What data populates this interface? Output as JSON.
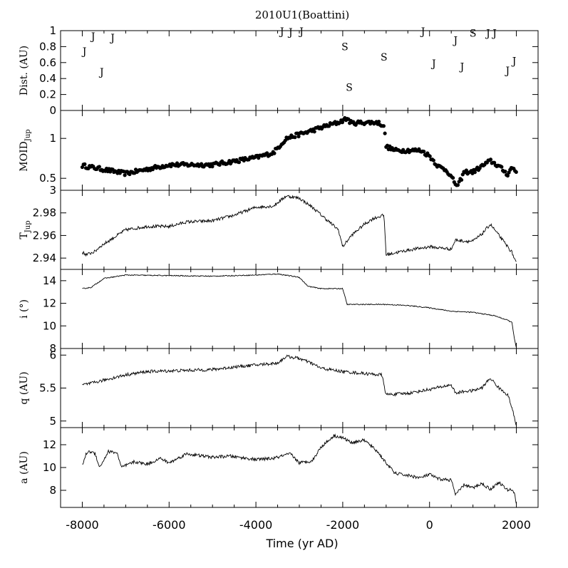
{
  "chart_data": {
    "title": "2010U1(Boattini)",
    "xlabel": "Time (yr AD)",
    "x_ticks": [
      -8000,
      -6000,
      -4000,
      -2000,
      0,
      2000
    ],
    "xlim": [
      -8500,
      2500
    ],
    "panels": [
      {
        "id": "dist",
        "type": "scatter",
        "ylabel": "Dist. (AU)",
        "ylim": [
          0,
          1
        ],
        "y_ticks": [
          0,
          0.2,
          0.4,
          0.6,
          0.8,
          1
        ],
        "encounters": [
          {
            "x": -7950,
            "y": 0.74,
            "label": "J"
          },
          {
            "x": -7750,
            "y": 0.93,
            "label": "J"
          },
          {
            "x": -7550,
            "y": 0.48,
            "label": "J"
          },
          {
            "x": -7300,
            "y": 0.91,
            "label": "J"
          },
          {
            "x": -3400,
            "y": 0.99,
            "label": "J"
          },
          {
            "x": -3200,
            "y": 0.98,
            "label": "J"
          },
          {
            "x": -2950,
            "y": 0.99,
            "label": "J"
          },
          {
            "x": -1950,
            "y": 0.8,
            "label": "S"
          },
          {
            "x": -1850,
            "y": 0.29,
            "label": "S"
          },
          {
            "x": -1050,
            "y": 0.67,
            "label": "S"
          },
          {
            "x": -150,
            "y": 0.99,
            "label": "J"
          },
          {
            "x": 100,
            "y": 0.59,
            "label": "J"
          },
          {
            "x": 600,
            "y": 0.88,
            "label": "J"
          },
          {
            "x": 750,
            "y": 0.55,
            "label": "J"
          },
          {
            "x": 1000,
            "y": 0.97,
            "label": "S"
          },
          {
            "x": 1350,
            "y": 0.97,
            "label": "J"
          },
          {
            "x": 1500,
            "y": 0.97,
            "label": "J"
          },
          {
            "x": 1800,
            "y": 0.5,
            "label": "J"
          },
          {
            "x": 1950,
            "y": 0.62,
            "label": "J"
          }
        ]
      },
      {
        "id": "moid",
        "type": "scatter",
        "ylabel": "MOID",
        "ylabel_sub": "Jup",
        "ylim": [
          0.35,
          1.35
        ],
        "y_ticks": [
          0.5,
          1
        ],
        "x": [
          -8000,
          -7000,
          -6000,
          -5000,
          -4000,
          -3600,
          -3300,
          -3000,
          -2700,
          -2300,
          -2100,
          -1900,
          -1800,
          -1500,
          -1200,
          -1050,
          -1000,
          -800,
          -500,
          -200,
          0,
          200,
          400,
          600,
          650,
          800,
          1000,
          1200,
          1400,
          1600,
          1800,
          1900,
          2000
        ],
        "y": [
          0.66,
          0.56,
          0.67,
          0.67,
          0.76,
          0.82,
          1.0,
          1.05,
          1.1,
          1.17,
          1.2,
          1.25,
          1.19,
          1.2,
          1.2,
          1.16,
          0.9,
          0.85,
          0.85,
          0.85,
          0.78,
          0.65,
          0.6,
          0.43,
          0.4,
          0.58,
          0.58,
          0.65,
          0.72,
          0.65,
          0.55,
          0.64,
          0.58
        ]
      },
      {
        "id": "tjup",
        "type": "line",
        "ylabel": "T",
        "ylabel_sub": "Jup",
        "ylim": [
          2.93,
          3.0
        ],
        "y_ticks": [
          2.94,
          2.96,
          2.98,
          3
        ],
        "x": [
          -8000,
          -7900,
          -7700,
          -7600,
          -7000,
          -6500,
          -6000,
          -5600,
          -5000,
          -4500,
          -4000,
          -3600,
          -3300,
          -3000,
          -2700,
          -2400,
          -2100,
          -2000,
          -1800,
          -1500,
          -1300,
          -1050,
          -1000,
          -500,
          0,
          500,
          600,
          800,
          1000,
          1200,
          1400,
          1600,
          1800,
          1900,
          2000
        ],
        "y": [
          2.945,
          2.943,
          2.946,
          2.95,
          2.965,
          2.968,
          2.968,
          2.972,
          2.973,
          2.978,
          2.985,
          2.986,
          2.995,
          2.993,
          2.985,
          2.975,
          2.965,
          2.95,
          2.96,
          2.97,
          2.975,
          2.978,
          2.943,
          2.947,
          2.95,
          2.948,
          2.956,
          2.955,
          2.955,
          2.961,
          2.97,
          2.96,
          2.95,
          2.945,
          2.935
        ]
      },
      {
        "id": "i",
        "type": "line",
        "ylabel": "i (°)",
        "ylim": [
          8,
          15
        ],
        "y_ticks": [
          8,
          10,
          12,
          14
        ],
        "x": [
          -8000,
          -7800,
          -7500,
          -7000,
          -5000,
          -4000,
          -3500,
          -3000,
          -2800,
          -2500,
          -2000,
          -1900,
          -1000,
          -500,
          0,
          500,
          1000,
          1500,
          1800,
          1900,
          1950,
          2000
        ],
        "y": [
          13.3,
          13.4,
          14.2,
          14.5,
          14.4,
          14.5,
          14.6,
          14.3,
          13.5,
          13.3,
          13.3,
          11.9,
          11.9,
          11.8,
          11.6,
          11.3,
          11.2,
          10.9,
          10.5,
          10.3,
          9.0,
          8.0
        ]
      },
      {
        "id": "q",
        "type": "line",
        "ylabel": "q (AU)",
        "ylim": [
          4.9,
          6.1
        ],
        "y_ticks": [
          5,
          5.5,
          6
        ],
        "x": [
          -8000,
          -7800,
          -7500,
          -7000,
          -6500,
          -6000,
          -5000,
          -4500,
          -4000,
          -3500,
          -3300,
          -3000,
          -2700,
          -2500,
          -2000,
          -1500,
          -1100,
          -1000,
          -500,
          0,
          500,
          600,
          800,
          1000,
          1200,
          1400,
          1600,
          1800,
          1900,
          2000
        ],
        "y": [
          5.55,
          5.57,
          5.62,
          5.7,
          5.75,
          5.76,
          5.78,
          5.82,
          5.85,
          5.88,
          5.98,
          5.95,
          5.87,
          5.8,
          5.75,
          5.72,
          5.7,
          5.4,
          5.42,
          5.48,
          5.55,
          5.42,
          5.45,
          5.46,
          5.5,
          5.65,
          5.5,
          5.4,
          5.2,
          4.92
        ]
      },
      {
        "id": "a",
        "type": "line",
        "ylabel": "a (AU)",
        "ylim": [
          6.5,
          13.5
        ],
        "y_ticks": [
          8,
          10,
          12
        ],
        "x": [
          -8000,
          -7900,
          -7800,
          -7700,
          -7600,
          -7400,
          -7200,
          -7100,
          -6800,
          -6500,
          -6200,
          -6000,
          -5600,
          -5000,
          -4600,
          -4000,
          -3600,
          -3200,
          -3000,
          -2700,
          -2500,
          -2200,
          -2000,
          -1800,
          -1500,
          -1200,
          -1000,
          -800,
          -500,
          -200,
          0,
          200,
          500,
          600,
          800,
          1000,
          1200,
          1400,
          1600,
          1800,
          1900,
          1950,
          2000
        ],
        "y": [
          10.2,
          11.3,
          11.4,
          11.2,
          10.0,
          11.4,
          11.3,
          10.0,
          10.5,
          10.3,
          10.8,
          10.4,
          11.2,
          10.9,
          11.0,
          10.7,
          10.8,
          11.2,
          10.4,
          10.6,
          11.8,
          12.8,
          12.6,
          12.2,
          12.4,
          11.4,
          10.4,
          9.5,
          9.3,
          9.1,
          9.4,
          9.0,
          8.9,
          7.6,
          8.5,
          8.2,
          8.6,
          8.1,
          8.7,
          8.0,
          8.1,
          7.8,
          6.8
        ]
      }
    ]
  }
}
